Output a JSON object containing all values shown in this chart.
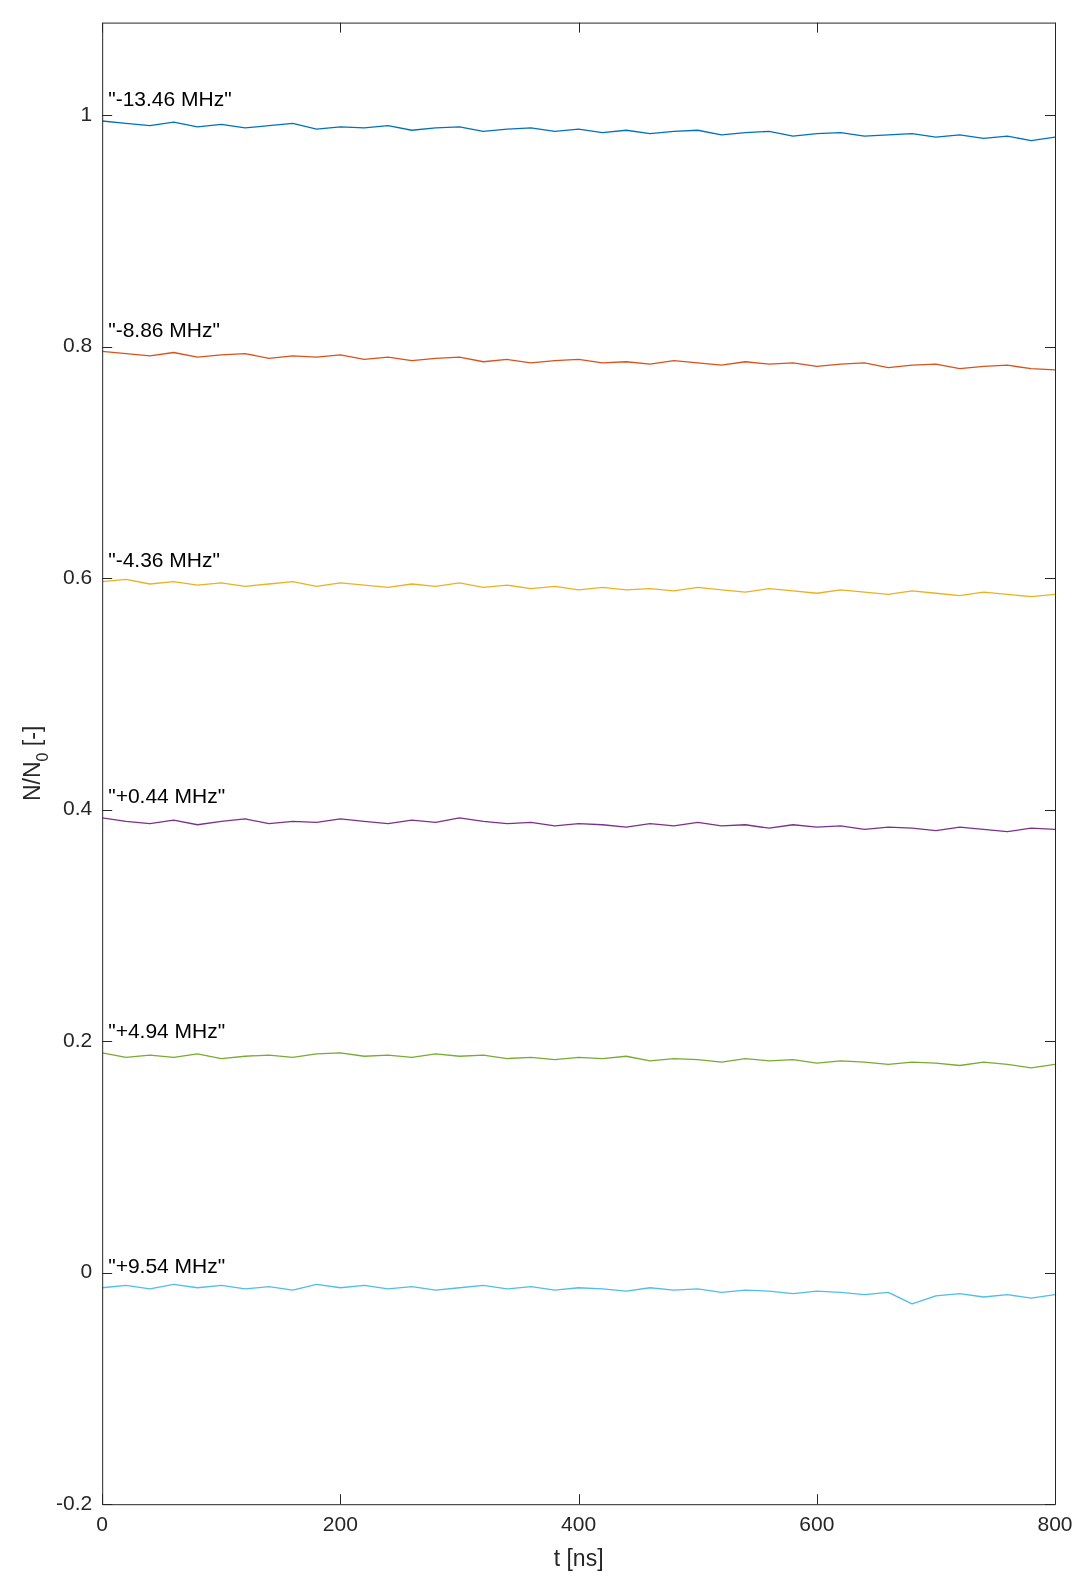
{
  "chart_data": {
    "type": "line",
    "xlabel": "t [ns]",
    "ylabel": "N/N$_{0}$ [-]",
    "x": [
      0,
      20,
      40,
      60,
      80,
      100,
      120,
      140,
      160,
      180,
      200,
      220,
      240,
      260,
      280,
      300,
      320,
      340,
      360,
      380,
      400,
      420,
      440,
      460,
      480,
      500,
      520,
      540,
      560,
      580,
      600,
      620,
      640,
      660,
      680,
      700,
      720,
      740,
      760,
      780,
      800
    ],
    "series": [
      {
        "name": "\"-13.46 MHz\"",
        "color": "#0072bd",
        "values": [
          0.995,
          0.993,
          0.991,
          0.994,
          0.99,
          0.992,
          0.989,
          0.991,
          0.993,
          0.988,
          0.99,
          0.989,
          0.991,
          0.987,
          0.989,
          0.99,
          0.986,
          0.988,
          0.989,
          0.986,
          0.988,
          0.985,
          0.987,
          0.984,
          0.986,
          0.987,
          0.983,
          0.985,
          0.986,
          0.982,
          0.984,
          0.985,
          0.982,
          0.983,
          0.984,
          0.981,
          0.983,
          0.98,
          0.982,
          0.978,
          0.981
        ]
      },
      {
        "name": "\"-8.86 MHz\"",
        "color": "#d95319",
        "values": [
          0.796,
          0.794,
          0.792,
          0.795,
          0.791,
          0.793,
          0.794,
          0.79,
          0.792,
          0.791,
          0.793,
          0.789,
          0.791,
          0.788,
          0.79,
          0.791,
          0.787,
          0.789,
          0.786,
          0.788,
          0.789,
          0.786,
          0.787,
          0.785,
          0.788,
          0.786,
          0.784,
          0.787,
          0.785,
          0.786,
          0.783,
          0.785,
          0.786,
          0.782,
          0.784,
          0.785,
          0.781,
          0.783,
          0.784,
          0.781,
          0.78
        ]
      },
      {
        "name": "\"-4.36 MHz\"",
        "color": "#edb120",
        "values": [
          0.597,
          0.599,
          0.595,
          0.597,
          0.594,
          0.596,
          0.593,
          0.595,
          0.597,
          0.593,
          0.596,
          0.594,
          0.592,
          0.595,
          0.593,
          0.596,
          0.592,
          0.594,
          0.591,
          0.593,
          0.59,
          0.592,
          0.59,
          0.591,
          0.589,
          0.592,
          0.59,
          0.588,
          0.591,
          0.589,
          0.587,
          0.59,
          0.588,
          0.586,
          0.589,
          0.587,
          0.585,
          0.588,
          0.586,
          0.584,
          0.586
        ]
      },
      {
        "name": "\"+0.44 MHz\"",
        "color": "#7e2f8e",
        "values": [
          0.393,
          0.39,
          0.388,
          0.391,
          0.387,
          0.39,
          0.392,
          0.388,
          0.39,
          0.389,
          0.392,
          0.39,
          0.388,
          0.391,
          0.389,
          0.393,
          0.39,
          0.388,
          0.389,
          0.386,
          0.388,
          0.387,
          0.385,
          0.388,
          0.386,
          0.389,
          0.386,
          0.387,
          0.384,
          0.387,
          0.385,
          0.386,
          0.383,
          0.385,
          0.384,
          0.382,
          0.385,
          0.383,
          0.381,
          0.384,
          0.383
        ]
      },
      {
        "name": "\"+4.94 MHz\"",
        "color": "#77ac30",
        "values": [
          0.19,
          0.186,
          0.188,
          0.186,
          0.189,
          0.185,
          0.187,
          0.188,
          0.186,
          0.189,
          0.19,
          0.187,
          0.188,
          0.186,
          0.189,
          0.187,
          0.188,
          0.185,
          0.186,
          0.184,
          0.186,
          0.185,
          0.187,
          0.183,
          0.185,
          0.184,
          0.182,
          0.185,
          0.183,
          0.184,
          0.181,
          0.183,
          0.182,
          0.18,
          0.182,
          0.181,
          0.179,
          0.182,
          0.18,
          0.177,
          0.18
        ]
      },
      {
        "name": "\"+9.54 MHz\"",
        "color": "#4dbeee",
        "values": [
          -0.013,
          -0.011,
          -0.014,
          -0.01,
          -0.013,
          -0.011,
          -0.014,
          -0.012,
          -0.015,
          -0.01,
          -0.013,
          -0.011,
          -0.014,
          -0.012,
          -0.015,
          -0.013,
          -0.011,
          -0.014,
          -0.012,
          -0.015,
          -0.013,
          -0.014,
          -0.016,
          -0.013,
          -0.015,
          -0.014,
          -0.017,
          -0.015,
          -0.016,
          -0.018,
          -0.016,
          -0.017,
          -0.019,
          -0.017,
          -0.027,
          -0.02,
          -0.018,
          -0.021,
          -0.019,
          -0.022,
          -0.019
        ]
      }
    ],
    "xlim": [
      0,
      800
    ],
    "xticks": [
      0,
      200,
      400,
      600,
      800
    ],
    "ylim": [
      -0.2,
      1.08
    ],
    "yticks": [
      -0.2,
      0,
      0.2,
      0.4,
      0.6,
      0.8,
      1
    ],
    "grid": false,
    "legend": false,
    "marker": "none",
    "line_style": "solid"
  }
}
